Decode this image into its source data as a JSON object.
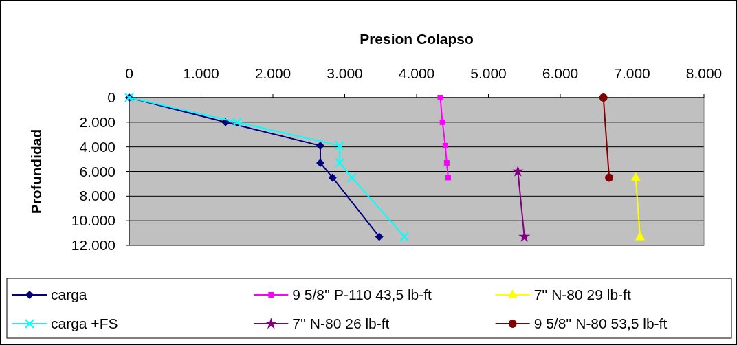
{
  "chart_data": {
    "type": "line",
    "title": "Presion Colapso",
    "ylabel": "Profundidad",
    "xlim": [
      0,
      8000
    ],
    "xticks": [
      0,
      {
        "value": 1000,
        "label": "1.000"
      },
      {
        "value": 2000,
        "label": "2.000"
      },
      {
        "value": 3000,
        "label": "3.000"
      },
      {
        "value": 4000,
        "label": "4.000"
      },
      {
        "value": 5000,
        "label": "5.000"
      },
      {
        "value": 6000,
        "label": "6.000"
      },
      {
        "value": 7000,
        "label": "7.000"
      },
      {
        "value": 8000,
        "label": "8.000"
      }
    ],
    "ylim": [
      12000,
      0
    ],
    "yticks": [
      0,
      {
        "value": 2000,
        "label": "2.000"
      },
      {
        "value": 4000,
        "label": "4.000"
      },
      {
        "value": 6000,
        "label": "6.000"
      },
      {
        "value": 8000,
        "label": "8.000"
      },
      {
        "value": 10000,
        "label": "10.000"
      },
      {
        "value": 12000,
        "label": "12.000"
      }
    ],
    "grid": "y",
    "legend": "bottom",
    "series": [
      {
        "name": "carga",
        "color": "#000080",
        "marker": "diamond",
        "x": [
          0,
          1340,
          2660,
          2660,
          2830,
          3480
        ],
        "values": [
          0,
          2000,
          3900,
          5300,
          6500,
          11300
        ]
      },
      {
        "name": "carga +FS",
        "color": "#00ffff",
        "marker": "cross",
        "x": [
          0,
          1500,
          2930,
          2930,
          3100,
          3830
        ],
        "values": [
          0,
          2000,
          3900,
          5300,
          6500,
          11300
        ]
      },
      {
        "name": "9 5/8'' P-110 43,5 lb-ft",
        "color": "#ff00ff",
        "marker": "square",
        "x": [
          4330,
          4360,
          4400,
          4420,
          4440
        ],
        "values": [
          0,
          2000,
          3900,
          5300,
          6500
        ]
      },
      {
        "name": "7'' N-80 26 lb-ft",
        "color": "#800080",
        "marker": "star",
        "x": [
          5410,
          5500
        ],
        "values": [
          6000,
          11300
        ]
      },
      {
        "name": "7'' N-80 29 lb-ft",
        "color": "#ffff00",
        "marker": "triangle",
        "x": [
          7050,
          7110
        ],
        "values": [
          6500,
          11300
        ]
      },
      {
        "name": "9 5/8'' N-80 53,5 lb-ft",
        "color": "#800000",
        "marker": "circle",
        "x": [
          6600,
          6680
        ],
        "values": [
          0,
          6500
        ]
      }
    ]
  }
}
